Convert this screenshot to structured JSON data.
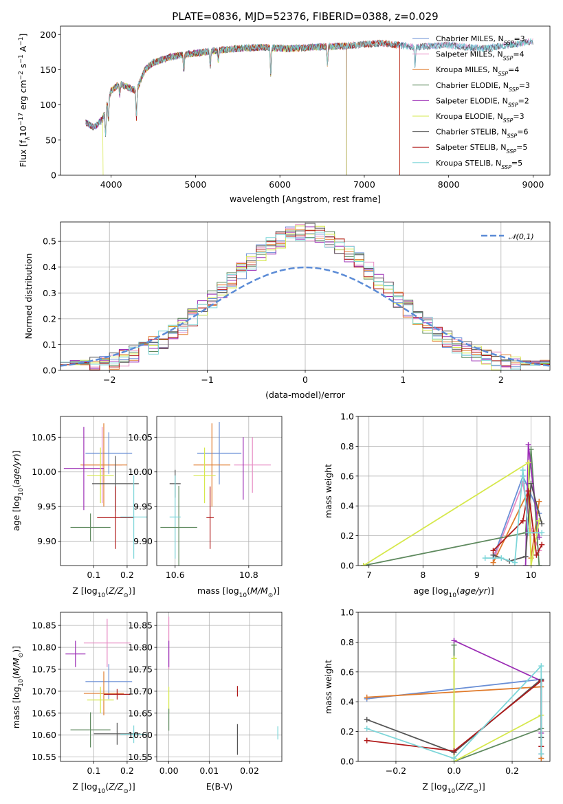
{
  "figure": {
    "title": "PLATE=0836, MJD=52376, FIBERID=0388, z=0.029"
  },
  "colors": {
    "Chabrier MILES": "#6a8fd6",
    "Salpeter MILES": "#e78ac3",
    "Kroupa MILES": "#e07b2c",
    "Chabrier ELODIE": "#5f8a5f",
    "Salpeter ELODIE": "#9b2db5",
    "Kroupa ELODIE": "#d6e84c",
    "Chabrier STELIB": "#555555",
    "Salpeter STELIB": "#b01a1a",
    "Kroupa STELIB": "#7dd6d9"
  },
  "chart_data": [
    {
      "id": "spectrum",
      "type": "line",
      "title": "PLATE=0836, MJD=52376, FIBERID=0388, z=0.029",
      "xlabel": "wavelength [Angstrom, rest frame]",
      "ylabel": "Flux [f_λ 10^-17 erg cm^-2 s^-1 A^-1]",
      "xlim": [
        3400,
        9200
      ],
      "ylim": [
        0,
        212
      ],
      "xticks": [
        4000,
        5000,
        6000,
        7000,
        8000,
        9000
      ],
      "yticks": [
        0,
        50,
        100,
        150,
        200
      ],
      "legend_position": "top-right",
      "series": [
        {
          "name": "Chabrier MILES",
          "nssp": "3",
          "range": [
            3700,
            9000
          ]
        },
        {
          "name": "Salpeter MILES",
          "nssp": "4",
          "range": [
            3700,
            9000
          ]
        },
        {
          "name": "Kroupa MILES",
          "nssp": "4",
          "range": [
            3700,
            7420
          ]
        },
        {
          "name": "Chabrier ELODIE",
          "nssp": "3",
          "range": [
            3700,
            6790
          ]
        },
        {
          "name": "Salpeter ELODIE",
          "nssp": "2",
          "range": [
            3700,
            6790
          ]
        },
        {
          "name": "Kroupa ELODIE",
          "nssp": "3",
          "range": [
            3900,
            6790
          ]
        },
        {
          "name": "Chabrier STELIB",
          "nssp": "6",
          "range": [
            3700,
            9000
          ]
        },
        {
          "name": "Salpeter STELIB",
          "nssp": "5",
          "range": [
            3700,
            7420
          ]
        },
        {
          "name": "Kroupa STELIB",
          "nssp": "5",
          "range": [
            3700,
            9000
          ]
        }
      ],
      "continuum": {
        "x": [
          3700,
          3800,
          3900,
          4000,
          4100,
          4200,
          4300,
          4400,
          4500,
          4700,
          4900,
          5100,
          5300,
          5500,
          5800,
          6100,
          6400,
          6800,
          7200,
          7600,
          8000,
          8400,
          9000
        ],
        "y": [
          75,
          68,
          80,
          120,
          130,
          125,
          120,
          150,
          160,
          168,
          172,
          175,
          178,
          180,
          182,
          180,
          182,
          184,
          188,
          182,
          185,
          180,
          190
        ]
      },
      "absorption_lines": [
        {
          "x": 3934,
          "depth": 35
        },
        {
          "x": 3968,
          "depth": 30
        },
        {
          "x": 4102,
          "depth": 15
        },
        {
          "x": 4300,
          "depth": 40
        },
        {
          "x": 4861,
          "depth": 22
        },
        {
          "x": 5175,
          "depth": 20
        },
        {
          "x": 5270,
          "depth": 15
        },
        {
          "x": 5892,
          "depth": 40
        },
        {
          "x": 6563,
          "depth": 25
        },
        {
          "x": 7600,
          "depth": 30
        }
      ]
    },
    {
      "id": "residuals",
      "type": "histogram",
      "xlabel": "(data-model)/error",
      "ylabel": "Normed distribution",
      "xlim": [
        -2.5,
        2.5
      ],
      "ylim": [
        0,
        0.575
      ],
      "xticks": [
        -2,
        -1,
        0,
        1,
        2
      ],
      "yticks": [
        0.0,
        0.1,
        0.2,
        0.3,
        0.4,
        0.5
      ],
      "grid": true,
      "legend_position": "top-right",
      "reference_curve": {
        "name": "𝒩(0,1)",
        "mean": 0,
        "sigma": 1
      },
      "bin_width": 0.1
    },
    {
      "id": "age_vs_Z",
      "type": "errorbar",
      "xlabel": "Z [log10(Z/Z⊙)]",
      "ylabel": "age [log10(age/yr)]",
      "xlim": [
        0.0,
        0.26
      ],
      "ylim": [
        9.865,
        10.08
      ],
      "xticks": [
        0.1,
        0.2
      ],
      "yticks": [
        9.9,
        9.95,
        10.0,
        10.05
      ],
      "grid": true,
      "points": [
        {
          "series": "Chabrier MILES",
          "x": 0.145,
          "y": 10.027,
          "xerr": 0.07,
          "yerr": 0.03
        },
        {
          "series": "Salpeter MILES",
          "x": 0.125,
          "y": 10.01,
          "xerr": 0.06,
          "yerr": 0.055
        },
        {
          "series": "Kroupa MILES",
          "x": 0.13,
          "y": 10.01,
          "xerr": 0.07,
          "yerr": 0.06
        },
        {
          "series": "Chabrier ELODIE",
          "x": 0.09,
          "y": 9.92,
          "xerr": 0.06,
          "yerr": 0.02
        },
        {
          "series": "Salpeter ELODIE",
          "x": 0.07,
          "y": 10.005,
          "xerr": 0.06,
          "yerr": 0.06
        },
        {
          "series": "Kroupa ELODIE",
          "x": 0.12,
          "y": 9.995,
          "xerr": 0.04,
          "yerr": 0.04
        },
        {
          "series": "Chabrier STELIB",
          "x": 0.165,
          "y": 9.983,
          "xerr": 0.07,
          "yerr": 0.04
        },
        {
          "series": "Salpeter STELIB",
          "x": 0.165,
          "y": 9.934,
          "xerr": 0.055,
          "yerr": 0.045
        },
        {
          "series": "Kroupa STELIB",
          "x": 0.22,
          "y": 9.935,
          "xerr": 0.04,
          "yerr": 0.06
        }
      ]
    },
    {
      "id": "age_vs_mass",
      "type": "errorbar",
      "xlabel": "mass [log10(M/M⊙)]",
      "ylabel": "",
      "xlim": [
        10.55,
        10.89
      ],
      "ylim": [
        9.865,
        10.08
      ],
      "xticks": [
        10.6,
        10.8
      ],
      "yticks": [
        9.9,
        9.95,
        10.0,
        10.05
      ],
      "grid": true,
      "points": [
        {
          "series": "Chabrier MILES",
          "x": 10.72,
          "y": 10.027,
          "xerr": 0.06,
          "yerr": 0.045
        },
        {
          "series": "Salpeter MILES",
          "x": 10.81,
          "y": 10.01,
          "xerr": 0.05,
          "yerr": 0.04
        },
        {
          "series": "Kroupa MILES",
          "x": 10.7,
          "y": 10.01,
          "xerr": 0.05,
          "yerr": 0.06
        },
        {
          "series": "Chabrier ELODIE",
          "x": 10.61,
          "y": 9.92,
          "xerr": 0.0,
          "yerr": 0.06
        },
        {
          "series": "Salpeter ELODIE",
          "x": 10.785,
          "y": 10.005,
          "xerr": 0.0,
          "yerr": 0.045
        },
        {
          "series": "Kroupa ELODIE",
          "x": 10.68,
          "y": 9.995,
          "xerr": 0.03,
          "yerr": 0.04
        },
        {
          "series": "Chabrier STELIB",
          "x": 10.6,
          "y": 9.983,
          "xerr": 0.015,
          "yerr": 0.02
        },
        {
          "series": "Salpeter STELIB",
          "x": 10.695,
          "y": 9.934,
          "xerr": 0.01,
          "yerr": 0.045
        },
        {
          "series": "Kroupa STELIB",
          "x": 10.6,
          "y": 9.935,
          "xerr": 0.015,
          "yerr": 0.06
        },
        {
          "series": "Chabrier ELODIE",
          "x": 10.61,
          "y": 9.92,
          "xerr": 0.05,
          "yerr": 0.0
        }
      ]
    },
    {
      "id": "mass_weight_vs_age",
      "type": "line",
      "xlabel": "age [log10(age/yr)]",
      "ylabel": "mass weight",
      "xlim": [
        6.8,
        10.35
      ],
      "ylim": [
        0,
        1.0
      ],
      "xticks": [
        7,
        8,
        9,
        10
      ],
      "yticks": [
        0.0,
        0.2,
        0.4,
        0.6,
        0.8,
        1.0
      ],
      "grid": true,
      "series": [
        {
          "name": "Chabrier MILES",
          "x": [
            9.3,
            9.85,
            10.15
          ],
          "y": [
            0.05,
            0.6,
            0.35
          ]
        },
        {
          "name": "Salpeter MILES",
          "x": [
            9.35,
            9.85,
            10.0,
            10.15
          ],
          "y": [
            0.08,
            0.55,
            0.25,
            0.1
          ]
        },
        {
          "name": "Kroupa MILES",
          "x": [
            9.3,
            9.95,
            10.0,
            10.15
          ],
          "y": [
            0.02,
            0.5,
            0.05,
            0.43
          ]
        },
        {
          "name": "Chabrier ELODIE",
          "x": [
            6.9,
            9.9,
            10.0,
            10.15
          ],
          "y": [
            0.0,
            0.22,
            0.78,
            0.0
          ]
        },
        {
          "name": "Salpeter ELODIE",
          "x": [
            9.9,
            9.95,
            10.15
          ],
          "y": [
            0.0,
            0.81,
            0.19
          ]
        },
        {
          "name": "Kroupa ELODIE",
          "x": [
            6.9,
            9.95,
            10.0,
            10.15
          ],
          "y": [
            0.0,
            0.69,
            0.0,
            0.3
          ]
        },
        {
          "name": "Chabrier STELIB",
          "x": [
            9.3,
            9.6,
            9.9,
            10.0,
            10.2
          ],
          "y": [
            0.07,
            0.03,
            0.06,
            0.55,
            0.28
          ]
        },
        {
          "name": "Salpeter STELIB",
          "x": [
            9.3,
            9.85,
            9.95,
            10.1,
            10.2
          ],
          "y": [
            0.1,
            0.3,
            0.5,
            0.07,
            0.14
          ]
        },
        {
          "name": "Kroupa STELIB",
          "x": [
            9.15,
            9.45,
            9.7,
            9.85,
            9.95,
            10.2
          ],
          "y": [
            0.05,
            0.05,
            0.02,
            0.64,
            0.22,
            0.22
          ]
        }
      ]
    },
    {
      "id": "mass_vs_Z",
      "type": "errorbar",
      "xlabel": "Z [log10(Z/Z⊙)]",
      "ylabel": "mass [log10(M/M⊙)]",
      "xlim": [
        0.0,
        0.26
      ],
      "ylim": [
        10.54,
        10.88
      ],
      "xticks": [
        0.1,
        0.2
      ],
      "yticks": [
        10.55,
        10.6,
        10.65,
        10.7,
        10.75,
        10.8,
        10.85
      ],
      "grid": true,
      "points": [
        {
          "series": "Chabrier MILES",
          "x": 0.145,
          "y": 10.722,
          "xerr": 0.07,
          "yerr": 0.04
        },
        {
          "series": "Salpeter MILES",
          "x": 0.14,
          "y": 10.81,
          "xerr": 0.07,
          "yerr": 0.055
        },
        {
          "series": "Kroupa MILES",
          "x": 0.13,
          "y": 10.695,
          "xerr": 0.06,
          "yerr": 0.05
        },
        {
          "series": "Chabrier ELODIE",
          "x": 0.09,
          "y": 10.612,
          "xerr": 0.06,
          "yerr": 0.04
        },
        {
          "series": "Salpeter ELODIE",
          "x": 0.045,
          "y": 10.785,
          "xerr": 0.03,
          "yerr": 0.03
        },
        {
          "series": "Kroupa ELODIE",
          "x": 0.12,
          "y": 10.68,
          "xerr": 0.04,
          "yerr": 0.03
        },
        {
          "series": "Chabrier STELIB",
          "x": 0.17,
          "y": 10.603,
          "xerr": 0.07,
          "yerr": 0.025
        },
        {
          "series": "Salpeter STELIB",
          "x": 0.17,
          "y": 10.693,
          "xerr": 0.04,
          "yerr": 0.012
        },
        {
          "series": "Kroupa STELIB",
          "x": 0.22,
          "y": 10.602,
          "xerr": 0.04,
          "yerr": 0.02
        }
      ]
    },
    {
      "id": "mass_vs_ebv",
      "type": "errorbar",
      "xlabel": "E(B-V)",
      "ylabel": "",
      "xlim": [
        -0.003,
        0.028
      ],
      "ylim": [
        10.54,
        10.88
      ],
      "xticks": [
        0.0,
        0.01,
        0.02
      ],
      "xticklabels": [
        "0.00",
        "0.01",
        "0.02"
      ],
      "yticks": [
        10.55,
        10.6,
        10.65,
        10.7,
        10.75,
        10.8,
        10.85
      ],
      "grid": true,
      "points": [
        {
          "series": "Salpeter MILES",
          "x": 0.0,
          "y": 10.81,
          "xerr": 0.0,
          "yerr": 0.06
        },
        {
          "series": "Salpeter ELODIE",
          "x": 0.0,
          "y": 10.785,
          "xerr": 0.0,
          "yerr": 0.03
        },
        {
          "series": "Kroupa ELODIE",
          "x": 0.0,
          "y": 10.68,
          "xerr": 0.0,
          "yerr": 0.03
        },
        {
          "series": "Chabrier ELODIE",
          "x": 0.0,
          "y": 10.635,
          "xerr": 0.0,
          "yerr": 0.025
        },
        {
          "series": "Salpeter STELIB",
          "x": 0.017,
          "y": 10.7,
          "xerr": 0.0,
          "yerr": 0.012
        },
        {
          "series": "Chabrier STELIB",
          "x": 0.017,
          "y": 10.59,
          "xerr": 0.0,
          "yerr": 0.035
        },
        {
          "series": "Kroupa STELIB",
          "x": 0.027,
          "y": 10.605,
          "xerr": 0.0,
          "yerr": 0.015
        }
      ]
    },
    {
      "id": "mass_weight_vs_Z",
      "type": "line",
      "xlabel": "Z [log10(Z/Z⊙)]",
      "ylabel": "mass weight",
      "xlim": [
        -0.33,
        0.33
      ],
      "ylim": [
        0,
        1.0
      ],
      "xticks": [
        -0.2,
        0.0,
        0.2
      ],
      "xticklabels": [
        "−0.2",
        "0.0",
        "0.2"
      ],
      "yticks": [
        0.0,
        0.2,
        0.4,
        0.6,
        0.8,
        1.0
      ],
      "grid": true,
      "series": [
        {
          "name": "Chabrier MILES",
          "x": [
            -0.3,
            0.3,
            0.3
          ],
          "y": [
            0.42,
            0.55,
            0.02
          ]
        },
        {
          "name": "Salpeter MILES",
          "x": [
            0.3,
            0.3
          ],
          "y": [
            0.1,
            0.05
          ]
        },
        {
          "name": "Kroupa MILES",
          "x": [
            -0.3,
            0.3,
            0.3
          ],
          "y": [
            0.43,
            0.5,
            0.02
          ]
        },
        {
          "name": "Chabrier ELODIE",
          "x": [
            0.0,
            0.0,
            0.3
          ],
          "y": [
            0.78,
            0.0,
            0.22
          ]
        },
        {
          "name": "Salpeter ELODIE",
          "x": [
            0.0,
            0.3,
            0.3
          ],
          "y": [
            0.81,
            0.54,
            0.19
          ]
        },
        {
          "name": "Kroupa ELODIE",
          "x": [
            0.0,
            0.0,
            0.3
          ],
          "y": [
            0.69,
            0.0,
            0.31
          ]
        },
        {
          "name": "Chabrier STELIB",
          "x": [
            -0.3,
            0.0,
            0.3,
            0.3
          ],
          "y": [
            0.28,
            0.06,
            0.55,
            0.16
          ]
        },
        {
          "name": "Salpeter STELIB",
          "x": [
            -0.3,
            0.0,
            0.3,
            0.3
          ],
          "y": [
            0.14,
            0.07,
            0.54,
            0.1
          ]
        },
        {
          "name": "Kroupa STELIB",
          "x": [
            -0.3,
            0.0,
            0.3,
            0.3
          ],
          "y": [
            0.22,
            0.02,
            0.64,
            0.05
          ]
        }
      ]
    }
  ]
}
